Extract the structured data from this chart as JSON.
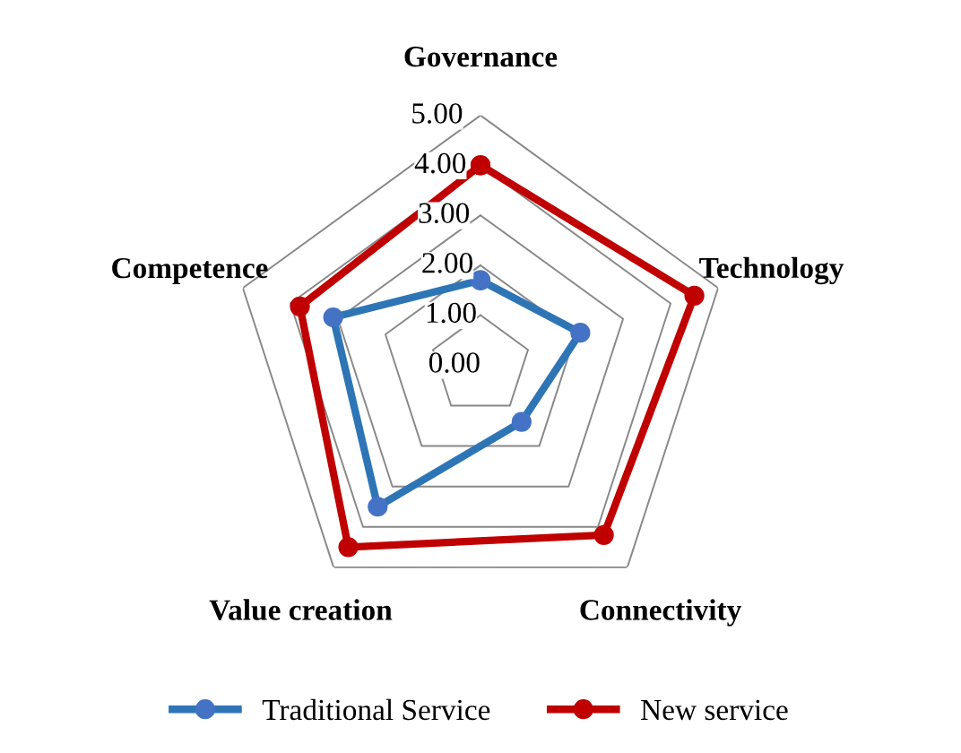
{
  "chart_data": {
    "type": "radar",
    "categories": [
      "Governance",
      "Technology",
      "Connectivity",
      "Value creation",
      "Competence"
    ],
    "series": [
      {
        "name": "Traditional Service",
        "color": "#2e75b6",
        "values": [
          1.7,
          2.1,
          1.4,
          3.5,
          3.1
        ]
      },
      {
        "name": "New service",
        "color": "#c00000",
        "values": [
          4.0,
          4.5,
          4.2,
          4.5,
          3.8
        ]
      }
    ],
    "ylim": [
      0,
      5
    ],
    "yticks": [
      {
        "value": 0,
        "label": "0.00"
      },
      {
        "value": 1,
        "label": "1.00"
      },
      {
        "value": 2,
        "label": "2.00"
      },
      {
        "value": 3,
        "label": "3.00"
      },
      {
        "value": 4,
        "label": "4.00"
      },
      {
        "value": 5,
        "label": "5.00"
      }
    ],
    "grid": true,
    "legend": "bottom",
    "marker": "circle",
    "line_style": "solid"
  }
}
